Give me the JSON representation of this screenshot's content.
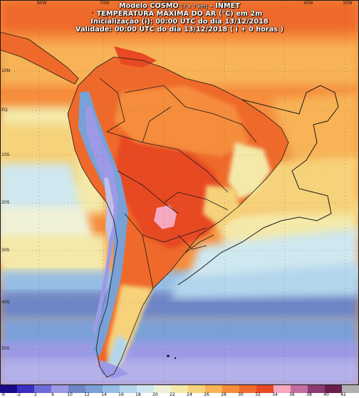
{
  "header": {
    "line1_main": "Modelo COSMO",
    "line1_res": "[7 x 7 km]",
    "line1_org": "- INMET",
    "line2": "TEMPERATURA MÁXIMA DO AR (°C) em 2m",
    "line3": "Inicialização (i): 00:00 UTC do dia 13/12/2018",
    "line4": "Validade: 00:00 UTC do dia 13/12/2018 ( i + 0 horas )"
  },
  "coord_labels": {
    "top": [
      "80W",
      "70W",
      "60W",
      "50W",
      "40W",
      "30W"
    ],
    "left": [
      "10N",
      "EQ",
      "10S",
      "20S",
      "30S",
      "40S",
      "50S"
    ]
  },
  "legend": {
    "ticks": [
      "-6",
      "-2",
      "2",
      "6",
      "10",
      "12",
      "14",
      "16",
      "18",
      "20",
      "22",
      "24",
      "26",
      "28",
      "30",
      "32",
      "34",
      "36",
      "38",
      "40",
      "42"
    ],
    "colors": [
      "#1a0a8c",
      "#3a2fc0",
      "#6f6cd8",
      "#9c9ae6",
      "#6e86c8",
      "#7aa0d8",
      "#96bde4",
      "#b4d6ec",
      "#cfe8f0",
      "#f0f2d8",
      "#f4e9a8",
      "#f6d27a",
      "#f7b356",
      "#f58d3c",
      "#ef6a2a",
      "#e74a22",
      "#f6a8c0",
      "#c46ea0",
      "#8c3a72",
      "#6a1e4c",
      "#b0b0b0"
    ]
  }
}
